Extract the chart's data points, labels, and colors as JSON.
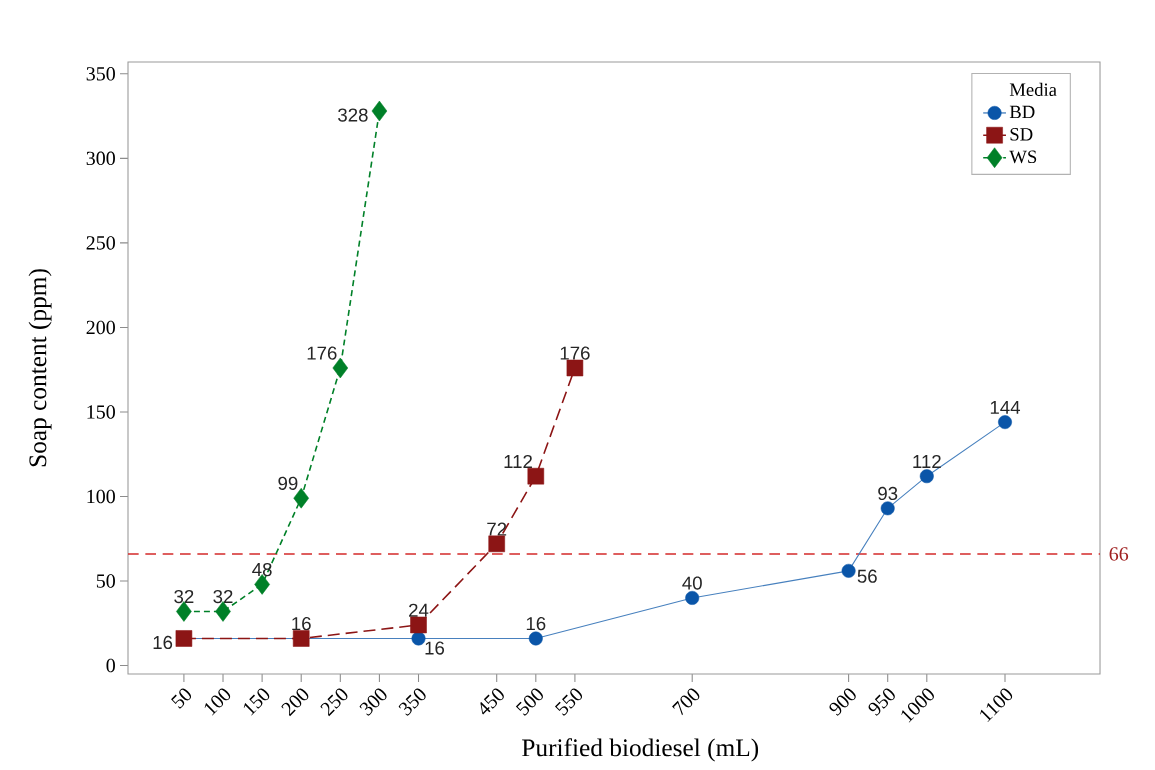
{
  "chart_data": {
    "type": "line",
    "xlabel": "Purified biodiesel (mL)",
    "ylabel": "Soap content (ppm)",
    "legend_title": "Media",
    "categories": [
      "50",
      "100",
      "150",
      "200",
      "250",
      "300",
      "350",
      null,
      "450",
      "500",
      "550",
      null,
      null,
      "700",
      null,
      null,
      null,
      "900",
      "950",
      "1000",
      null,
      "1100"
    ],
    "ylim": [
      -5,
      357
    ],
    "yticks": [
      0,
      50,
      100,
      150,
      200,
      250,
      300,
      350
    ],
    "legend": "top right",
    "series": [
      {
        "name": "BD",
        "color": "#0a55a8",
        "marker": "circle",
        "line_style": "solid",
        "values": [
          16,
          null,
          null,
          null,
          null,
          null,
          16,
          null,
          null,
          16,
          null,
          null,
          null,
          40,
          null,
          null,
          null,
          56,
          93,
          112,
          null,
          144
        ],
        "value_labels": [
          null,
          null,
          null,
          null,
          null,
          null,
          "16",
          null,
          null,
          "16",
          null,
          null,
          null,
          "40",
          null,
          null,
          null,
          "56",
          "93",
          "112",
          null,
          "144"
        ]
      },
      {
        "name": "SD",
        "color": "#8c1515",
        "marker": "square",
        "line_style": "dashed",
        "values": [
          16,
          null,
          null,
          16,
          null,
          null,
          24,
          null,
          72,
          112,
          176,
          null,
          null,
          null,
          null,
          null,
          null,
          null,
          null,
          null,
          null,
          null
        ],
        "value_labels": [
          "16",
          null,
          null,
          "16",
          null,
          null,
          "24",
          null,
          "72",
          "112",
          "176",
          null,
          null,
          null,
          null,
          null,
          null,
          null,
          null,
          null,
          null,
          null
        ]
      },
      {
        "name": "WS",
        "color": "#008028",
        "marker": "diamond",
        "line_style": "dashed",
        "values": [
          32,
          32,
          48,
          99,
          176,
          328,
          null,
          null,
          null,
          null,
          null,
          null,
          null,
          null,
          null,
          null,
          null,
          null,
          null,
          null,
          null,
          null
        ],
        "value_labels": [
          "32",
          "32",
          "48",
          "99",
          "176",
          "328",
          null,
          null,
          null,
          null,
          null,
          null,
          null,
          null,
          null,
          null,
          null,
          null,
          null,
          null,
          null,
          null
        ]
      }
    ],
    "ref_lines": [
      {
        "axis": "y",
        "value": 66,
        "label": "66",
        "color": "#d42a2a",
        "line_style": "dashed"
      }
    ]
  }
}
